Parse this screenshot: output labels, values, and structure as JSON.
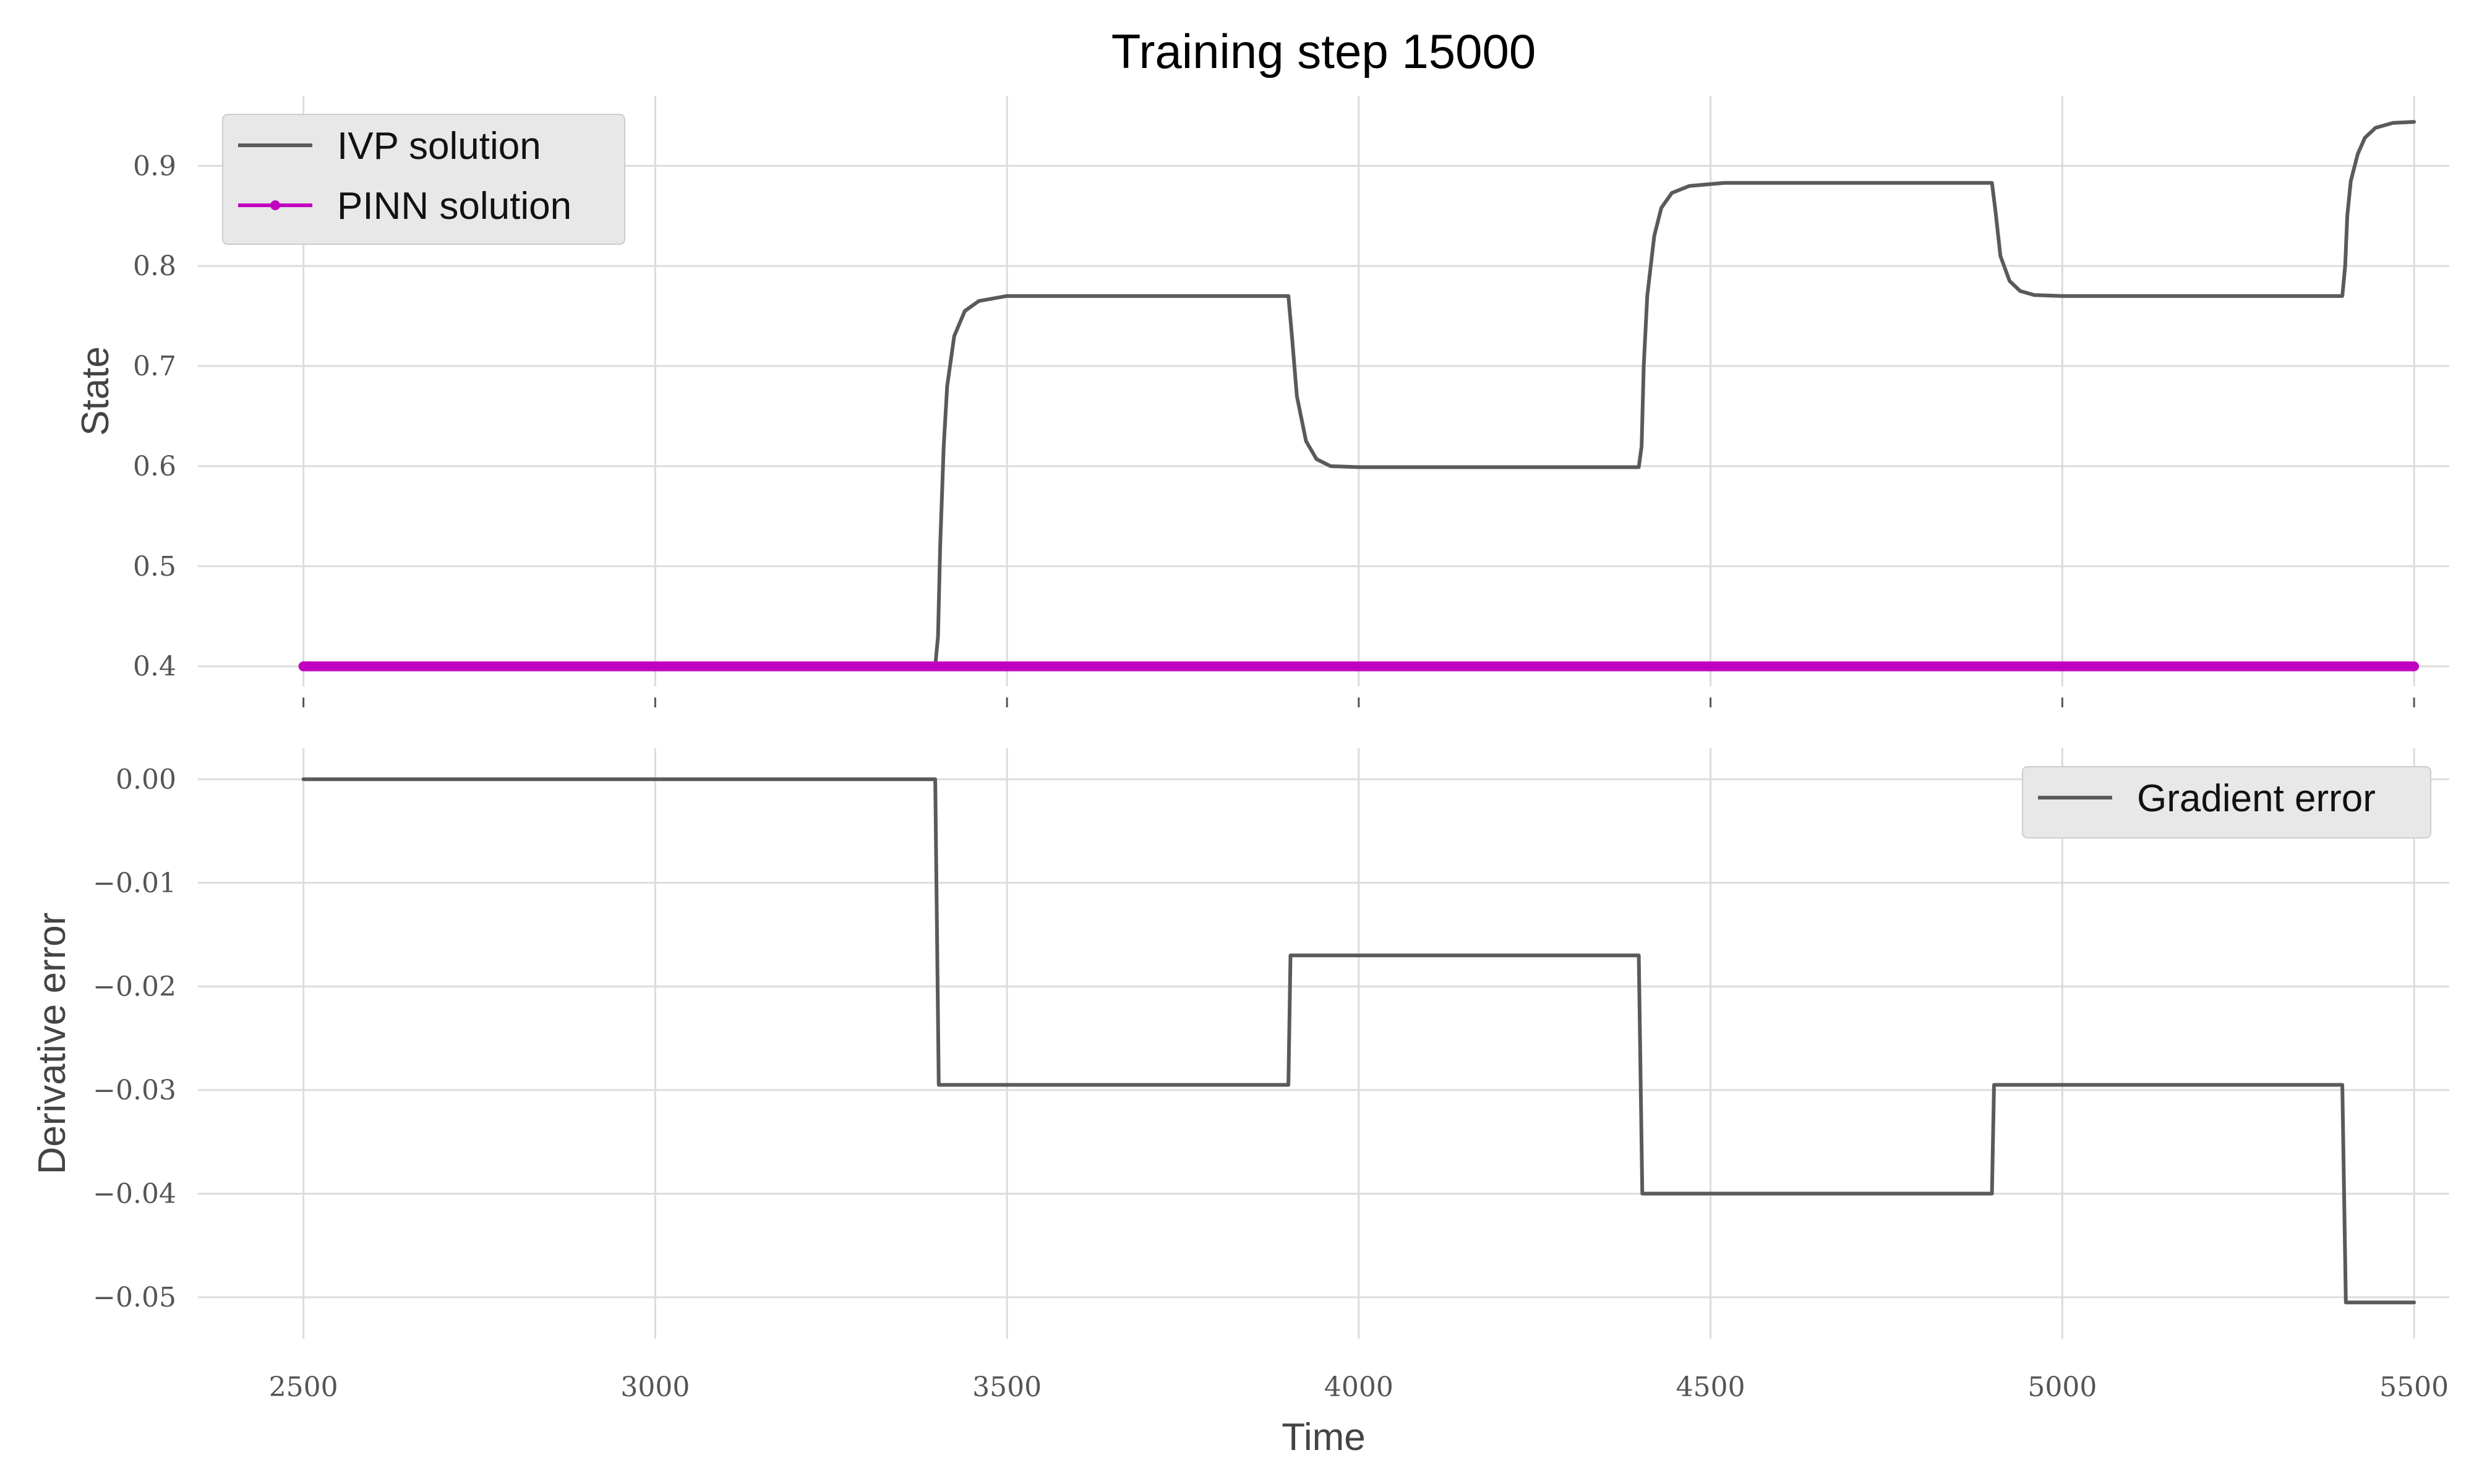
{
  "title": "Training step 15000",
  "colors": {
    "ivp": "#5a5a5a",
    "pinn": "#c000c0",
    "grid": "#dcdcdc",
    "legend_bg": "#e8e8e8"
  },
  "chart_data": [
    {
      "type": "line",
      "title": "Training step 15000",
      "xlabel": "",
      "ylabel": "State",
      "xlim": [
        2350,
        5550
      ],
      "ylim": [
        0.38,
        0.97
      ],
      "xticks": [
        2500,
        3000,
        3500,
        4000,
        4500,
        5000,
        5500
      ],
      "xtick_labels_shown": false,
      "yticks": [
        0.4,
        0.5,
        0.6,
        0.7,
        0.8,
        0.9
      ],
      "ytick_labels": [
        "0.4",
        "0.5",
        "0.6",
        "0.7",
        "0.8",
        "0.9"
      ],
      "grid": true,
      "legend": {
        "position": "top-left"
      },
      "series": [
        {
          "name": "IVP solution",
          "color": "#5a5a5a",
          "x": [
            2500,
            3398,
            3402,
            3405,
            3410,
            3415,
            3425,
            3440,
            3460,
            3500,
            3900,
            3905,
            3912,
            3925,
            3940,
            3960,
            4000,
            4398,
            4402,
            4405,
            4410,
            4420,
            4430,
            4445,
            4470,
            4520,
            4900,
            4905,
            4912,
            4925,
            4940,
            4960,
            5000,
            5398,
            5402,
            5405,
            5410,
            5420,
            5430,
            5445,
            5470,
            5500
          ],
          "y": [
            0.4,
            0.4,
            0.43,
            0.52,
            0.62,
            0.68,
            0.73,
            0.755,
            0.765,
            0.77,
            0.77,
            0.73,
            0.67,
            0.625,
            0.607,
            0.6,
            0.599,
            0.599,
            0.62,
            0.7,
            0.77,
            0.83,
            0.858,
            0.873,
            0.88,
            0.883,
            0.883,
            0.855,
            0.81,
            0.785,
            0.775,
            0.771,
            0.77,
            0.77,
            0.8,
            0.85,
            0.885,
            0.912,
            0.928,
            0.938,
            0.943,
            0.944
          ]
        },
        {
          "name": "PINN solution",
          "color": "#c000c0",
          "x": [
            2500,
            5500
          ],
          "y": [
            0.4,
            0.4
          ]
        }
      ]
    },
    {
      "type": "line",
      "xlabel": "Time",
      "ylabel": "Derivative error",
      "xlim": [
        2350,
        5550
      ],
      "ylim": [
        -0.054,
        0.003
      ],
      "xticks": [
        2500,
        3000,
        3500,
        4000,
        4500,
        5000,
        5500
      ],
      "xtick_labels": [
        "2500",
        "3000",
        "3500",
        "4000",
        "4500",
        "5000",
        "5500"
      ],
      "yticks": [
        0.0,
        -0.01,
        -0.02,
        -0.03,
        -0.04,
        -0.05
      ],
      "ytick_labels": [
        "0.00",
        "−0.01",
        "−0.02",
        "−0.03",
        "−0.04",
        "−0.05"
      ],
      "grid": true,
      "legend": {
        "position": "top-right"
      },
      "series": [
        {
          "name": "Gradient error",
          "color": "#5a5a5a",
          "x": [
            2500,
            3398,
            3403,
            3900,
            3903,
            4398,
            4403,
            4900,
            4903,
            5398,
            5403,
            5500
          ],
          "y": [
            0.0,
            0.0,
            -0.0295,
            -0.0295,
            -0.017,
            -0.017,
            -0.04,
            -0.04,
            -0.0295,
            -0.0295,
            -0.0505,
            -0.0505
          ]
        }
      ]
    }
  ]
}
